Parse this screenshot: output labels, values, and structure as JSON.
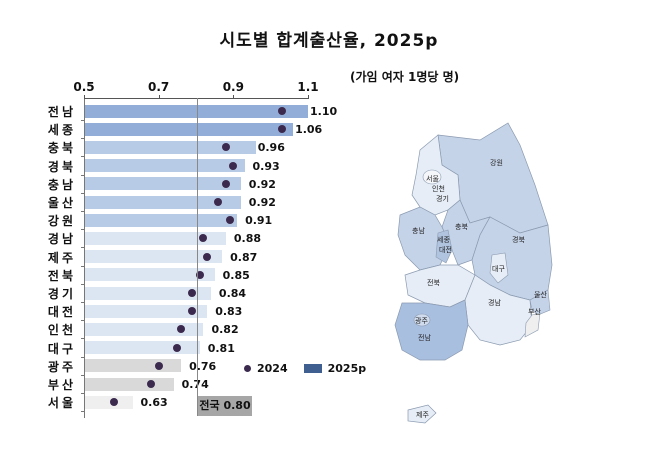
{
  "title": "시도별 합계출산율, 2025p",
  "unit": "(가임 여자 1명당 명)",
  "legend": {
    "series_2024": "2024",
    "series_2025": "2025p"
  },
  "national": {
    "label": "전국 0.80",
    "value": 0.8
  },
  "axis": {
    "ticks": [
      "0.5",
      "0.7",
      "0.9",
      "1.1"
    ]
  },
  "colors": {
    "tier1": "#92aed8",
    "tier2": "#b8cbe6",
    "tier3": "#dce6f2",
    "tier4": "#d9d9d9",
    "tier5": "#efefef",
    "dot": "#3b2a4e",
    "national_box": "#a6a6a6"
  },
  "rows": [
    {
      "region": "전남",
      "v2025": 1.1,
      "v2025_label": "1.10",
      "v2024": 1.03,
      "tier": "tier1"
    },
    {
      "region": "세종",
      "v2025": 1.06,
      "v2025_label": "1.06",
      "v2024": 1.03,
      "tier": "tier1"
    },
    {
      "region": "충북",
      "v2025": 0.96,
      "v2025_label": "0.96",
      "v2024": 0.88,
      "tier": "tier2"
    },
    {
      "region": "경북",
      "v2025": 0.93,
      "v2025_label": "0.93",
      "v2024": 0.9,
      "tier": "tier2"
    },
    {
      "region": "충남",
      "v2025": 0.92,
      "v2025_label": "0.92",
      "v2024": 0.88,
      "tier": "tier2"
    },
    {
      "region": "울산",
      "v2025": 0.92,
      "v2025_label": "0.92",
      "v2024": 0.86,
      "tier": "tier2"
    },
    {
      "region": "강원",
      "v2025": 0.91,
      "v2025_label": "0.91",
      "v2024": 0.89,
      "tier": "tier2"
    },
    {
      "region": "경남",
      "v2025": 0.88,
      "v2025_label": "0.88",
      "v2024": 0.82,
      "tier": "tier3"
    },
    {
      "region": "제주",
      "v2025": 0.87,
      "v2025_label": "0.87",
      "v2024": 0.83,
      "tier": "tier3"
    },
    {
      "region": "전북",
      "v2025": 0.85,
      "v2025_label": "0.85",
      "v2024": 0.81,
      "tier": "tier3"
    },
    {
      "region": "경기",
      "v2025": 0.84,
      "v2025_label": "0.84",
      "v2024": 0.79,
      "tier": "tier3"
    },
    {
      "region": "대전",
      "v2025": 0.83,
      "v2025_label": "0.83",
      "v2024": 0.79,
      "tier": "tier3"
    },
    {
      "region": "인천",
      "v2025": 0.82,
      "v2025_label": "0.82",
      "v2024": 0.76,
      "tier": "tier3"
    },
    {
      "region": "대구",
      "v2025": 0.81,
      "v2025_label": "0.81",
      "v2024": 0.75,
      "tier": "tier3"
    },
    {
      "region": "광주",
      "v2025": 0.76,
      "v2025_label": "0.76",
      "v2024": 0.7,
      "tier": "tier4"
    },
    {
      "region": "부산",
      "v2025": 0.74,
      "v2025_label": "0.74",
      "v2024": 0.68,
      "tier": "tier4"
    },
    {
      "region": "서울",
      "v2025": 0.63,
      "v2025_label": "0.63",
      "v2024": 0.58,
      "tier": "tier5"
    }
  ],
  "map": {
    "labels": [
      "강원",
      "서울",
      "인천",
      "경기",
      "충북",
      "충남",
      "세종",
      "대전",
      "경북",
      "대구",
      "전북",
      "경남",
      "울산",
      "부산",
      "광주",
      "전남",
      "제주"
    ]
  },
  "chart_data": {
    "type": "bar",
    "orientation": "horizontal",
    "title": "시도별 합계출산율, 2025p",
    "subtitle": "(가임 여자 1명당 명)",
    "xlabel": "",
    "ylabel": "",
    "xlim": [
      0.5,
      1.1
    ],
    "x_ticks": [
      0.5,
      0.7,
      0.9,
      1.1
    ],
    "grid": false,
    "legend_position": "bottom-right",
    "categories": [
      "전남",
      "세종",
      "충북",
      "경북",
      "충남",
      "울산",
      "강원",
      "경남",
      "제주",
      "전북",
      "경기",
      "대전",
      "인천",
      "대구",
      "광주",
      "부산",
      "서울"
    ],
    "series": [
      {
        "name": "2025p",
        "type": "bar",
        "values": [
          1.1,
          1.06,
          0.96,
          0.93,
          0.92,
          0.92,
          0.91,
          0.88,
          0.87,
          0.85,
          0.84,
          0.83,
          0.82,
          0.81,
          0.76,
          0.74,
          0.63
        ]
      },
      {
        "name": "2024",
        "type": "scatter",
        "values": [
          1.03,
          1.03,
          0.88,
          0.9,
          0.88,
          0.86,
          0.89,
          0.82,
          0.83,
          0.81,
          0.79,
          0.79,
          0.76,
          0.75,
          0.7,
          0.68,
          0.58
        ]
      }
    ],
    "annotations": [
      {
        "text": "전국 0.80",
        "x": 0.8,
        "type": "reference-line"
      }
    ]
  }
}
